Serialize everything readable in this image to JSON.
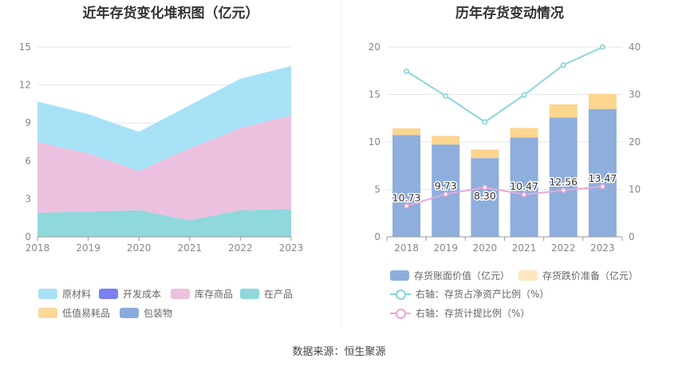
{
  "left_title": "近年存货变化堆积图（亿元）",
  "right_title": "历年存货变动情况",
  "source": "数据来源：恒生聚源",
  "chart_data": [
    {
      "type": "area",
      "stacked": true,
      "title": "近年存货变化堆积图（亿元）",
      "x": [
        "2018",
        "2019",
        "2020",
        "2021",
        "2022",
        "2023"
      ],
      "ylim": [
        0,
        15
      ],
      "yticks": [
        0,
        3,
        6,
        9,
        12,
        15
      ],
      "grid": true,
      "legend_position": "bottom",
      "series": [
        {
          "name": "原材料",
          "color": "#a8e2f7",
          "values": [
            3.2,
            3.1,
            3.1,
            3.4,
            3.9,
            3.9
          ]
        },
        {
          "name": "开发成本",
          "color": "#7b7ff0",
          "values": [
            0,
            0,
            0,
            0,
            0,
            0
          ]
        },
        {
          "name": "库存商品",
          "color": "#ecc0df",
          "values": [
            5.6,
            4.6,
            3.1,
            5.7,
            6.5,
            7.4
          ]
        },
        {
          "name": "在产品",
          "color": "#8fd8dc",
          "values": [
            1.9,
            2.0,
            2.1,
            1.3,
            2.1,
            2.2
          ]
        },
        {
          "name": "低值易耗品",
          "color": "#fcd79a",
          "values": [
            0,
            0,
            0,
            0,
            0,
            0
          ]
        },
        {
          "name": "包装物",
          "color": "#8aaadc",
          "values": [
            0,
            0,
            0,
            0,
            0,
            0
          ]
        }
      ]
    },
    {
      "type": "bar",
      "stacked": true,
      "title": "历年存货变动情况",
      "categories": [
        "2018",
        "2019",
        "2020",
        "2021",
        "2022",
        "2023"
      ],
      "ylim": [
        0,
        20
      ],
      "yticks": [
        0,
        5,
        10,
        15,
        20
      ],
      "y2lim": [
        0,
        40
      ],
      "y2ticks": [
        0,
        10,
        20,
        30,
        40
      ],
      "grid": true,
      "legend_position": "bottom",
      "bar_series": [
        {
          "name": "存货账面价值（亿元）",
          "color": "#8eaedc",
          "values": [
            10.73,
            9.73,
            8.3,
            10.47,
            12.56,
            13.47
          ],
          "labels": [
            "10.73",
            "9.73",
            "8.30",
            "10.47",
            "12.56",
            "13.47"
          ]
        },
        {
          "name": "存货跌价准备（亿元）",
          "color": "#fcd58f",
          "legend_color": "#fde6c0",
          "values": [
            0.7,
            0.9,
            0.9,
            1.0,
            1.4,
            1.6
          ]
        }
      ],
      "line_series": [
        {
          "name": "右轴：存货占净资产比例（%）",
          "color": "#8ad6d8",
          "values": [
            34.9,
            29.7,
            24.2,
            29.9,
            36.2,
            40.0
          ]
        },
        {
          "name": "右轴：存货计提比例（%）",
          "color": "#e8a8d8",
          "values": [
            6.5,
            9.0,
            10.4,
            8.9,
            9.8,
            10.6
          ]
        }
      ]
    }
  ]
}
